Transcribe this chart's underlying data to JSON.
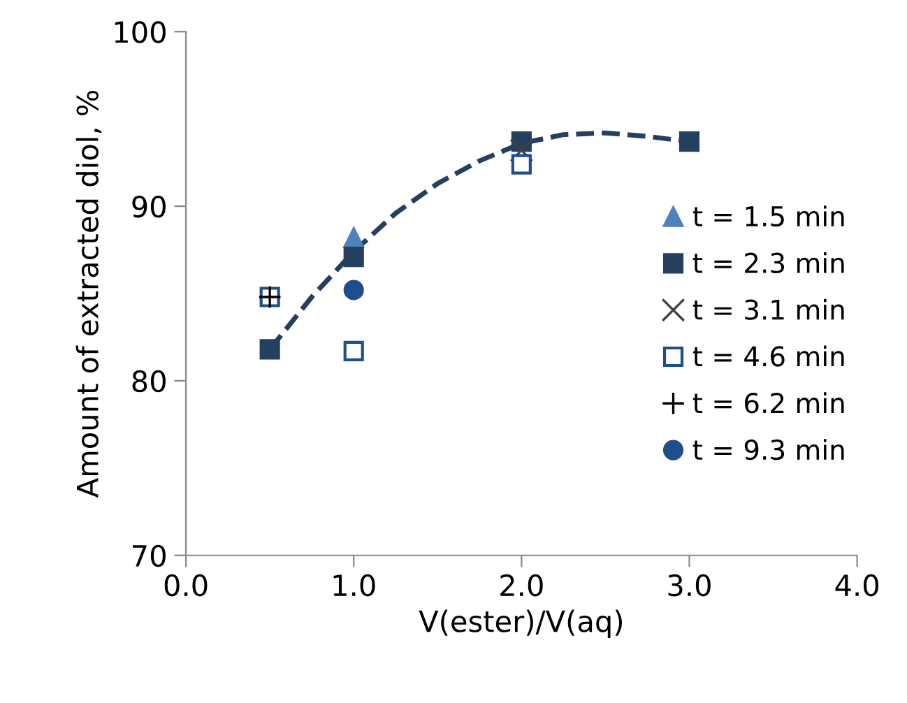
{
  "chart_data": {
    "type": "scatter",
    "xlabel": "V(ester)/V(aq)",
    "ylabel": "Amount of extracted diol, %",
    "xlim": [
      0.0,
      4.0
    ],
    "ylim": [
      70,
      100
    ],
    "xticks": [
      {
        "value": 0,
        "label": "0.0"
      },
      {
        "value": 1,
        "label": "1.0"
      },
      {
        "value": 2,
        "label": "2.0"
      },
      {
        "value": 3,
        "label": "3.0"
      },
      {
        "value": 4,
        "label": "4.0"
      }
    ],
    "yticks": [
      70,
      80,
      90,
      100
    ],
    "grid": false,
    "legend": "right",
    "series": [
      {
        "name": "t = 1.5 min",
        "color": "#4f81bd",
        "marker": "triangle",
        "x": [
          1.0
        ],
        "values": [
          88.2
        ]
      },
      {
        "name": "t = 2.3 min",
        "color": "#243f60",
        "marker": "square",
        "x": [
          0.5,
          1.0,
          2.0,
          3.0
        ],
        "values": [
          81.8,
          87.1,
          93.7,
          93.7
        ]
      },
      {
        "name": "t = 3.1 min",
        "color": "#404040",
        "marker": "cross",
        "x": [
          2.0
        ],
        "values": [
          93.2
        ]
      },
      {
        "name": "t = 4.6 min",
        "color": "#1f4e8c",
        "marker": "square-open",
        "x": [
          0.5,
          1.0,
          2.0
        ],
        "values": [
          84.8,
          81.7,
          92.4
        ]
      },
      {
        "name": "t = 6.2 min",
        "color": "#000000",
        "marker": "plus",
        "x": [
          0.5
        ],
        "values": [
          84.8
        ]
      },
      {
        "name": "t = 9.3 min",
        "color": "#1f4e8c",
        "marker": "circle",
        "x": [
          1.0
        ],
        "values": [
          85.2
        ]
      },
      {
        "type": "line",
        "color": "#243f60",
        "line_style": "dashed",
        "marker": "none",
        "x": [
          0.5,
          0.75,
          1.0,
          1.25,
          1.5,
          1.75,
          2.0,
          2.25,
          2.5,
          2.75,
          3.0
        ],
        "values": [
          81.8,
          84.8,
          87.4,
          89.6,
          91.3,
          92.6,
          93.6,
          94.1,
          94.2,
          94.0,
          93.7
        ]
      }
    ]
  }
}
